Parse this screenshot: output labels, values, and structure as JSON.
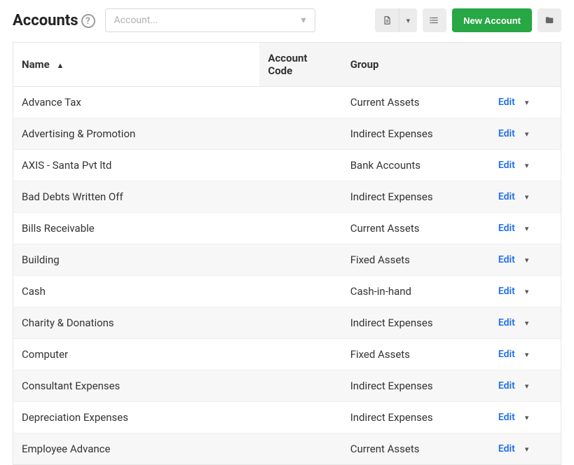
{
  "header": {
    "title": "Accounts",
    "help_tooltip": "?",
    "account_select_placeholder": "Account...",
    "new_button_label": "New Account"
  },
  "icons": {
    "doc": "doc-icon",
    "caret_down": "▾",
    "list": "list-icon",
    "folder": "folder-icon"
  },
  "table": {
    "columns": [
      {
        "key": "name",
        "label": "Name",
        "sorted": true,
        "sort_dir": "asc"
      },
      {
        "key": "code",
        "label": "Account Code"
      },
      {
        "key": "group",
        "label": "Group"
      }
    ],
    "edit_label": "Edit",
    "rows": [
      {
        "name": "Advance Tax",
        "code": "",
        "group": "Current Assets"
      },
      {
        "name": "Advertising & Promotion",
        "code": "",
        "group": "Indirect Expenses"
      },
      {
        "name": "AXIS - Santa Pvt ltd",
        "code": "",
        "group": "Bank Accounts"
      },
      {
        "name": "Bad Debts Written Off",
        "code": "",
        "group": "Indirect Expenses"
      },
      {
        "name": "Bills Receivable",
        "code": "",
        "group": "Current Assets"
      },
      {
        "name": "Building",
        "code": "",
        "group": "Fixed Assets"
      },
      {
        "name": "Cash",
        "code": "",
        "group": "Cash-in-hand"
      },
      {
        "name": "Charity & Donations",
        "code": "",
        "group": "Indirect Expenses"
      },
      {
        "name": "Computer",
        "code": "",
        "group": "Fixed Assets"
      },
      {
        "name": "Consultant Expenses",
        "code": "",
        "group": "Indirect Expenses"
      },
      {
        "name": "Depreciation Expenses",
        "code": "",
        "group": "Indirect Expenses"
      },
      {
        "name": "Employee Advance",
        "code": "",
        "group": "Current Assets"
      }
    ]
  },
  "colors": {
    "primary_green": "#28a745",
    "link_blue": "#1f6feb",
    "header_bg": "#f5f5f5",
    "row_alt_bg": "#f7f7f7",
    "border": "#e5e5e5"
  }
}
